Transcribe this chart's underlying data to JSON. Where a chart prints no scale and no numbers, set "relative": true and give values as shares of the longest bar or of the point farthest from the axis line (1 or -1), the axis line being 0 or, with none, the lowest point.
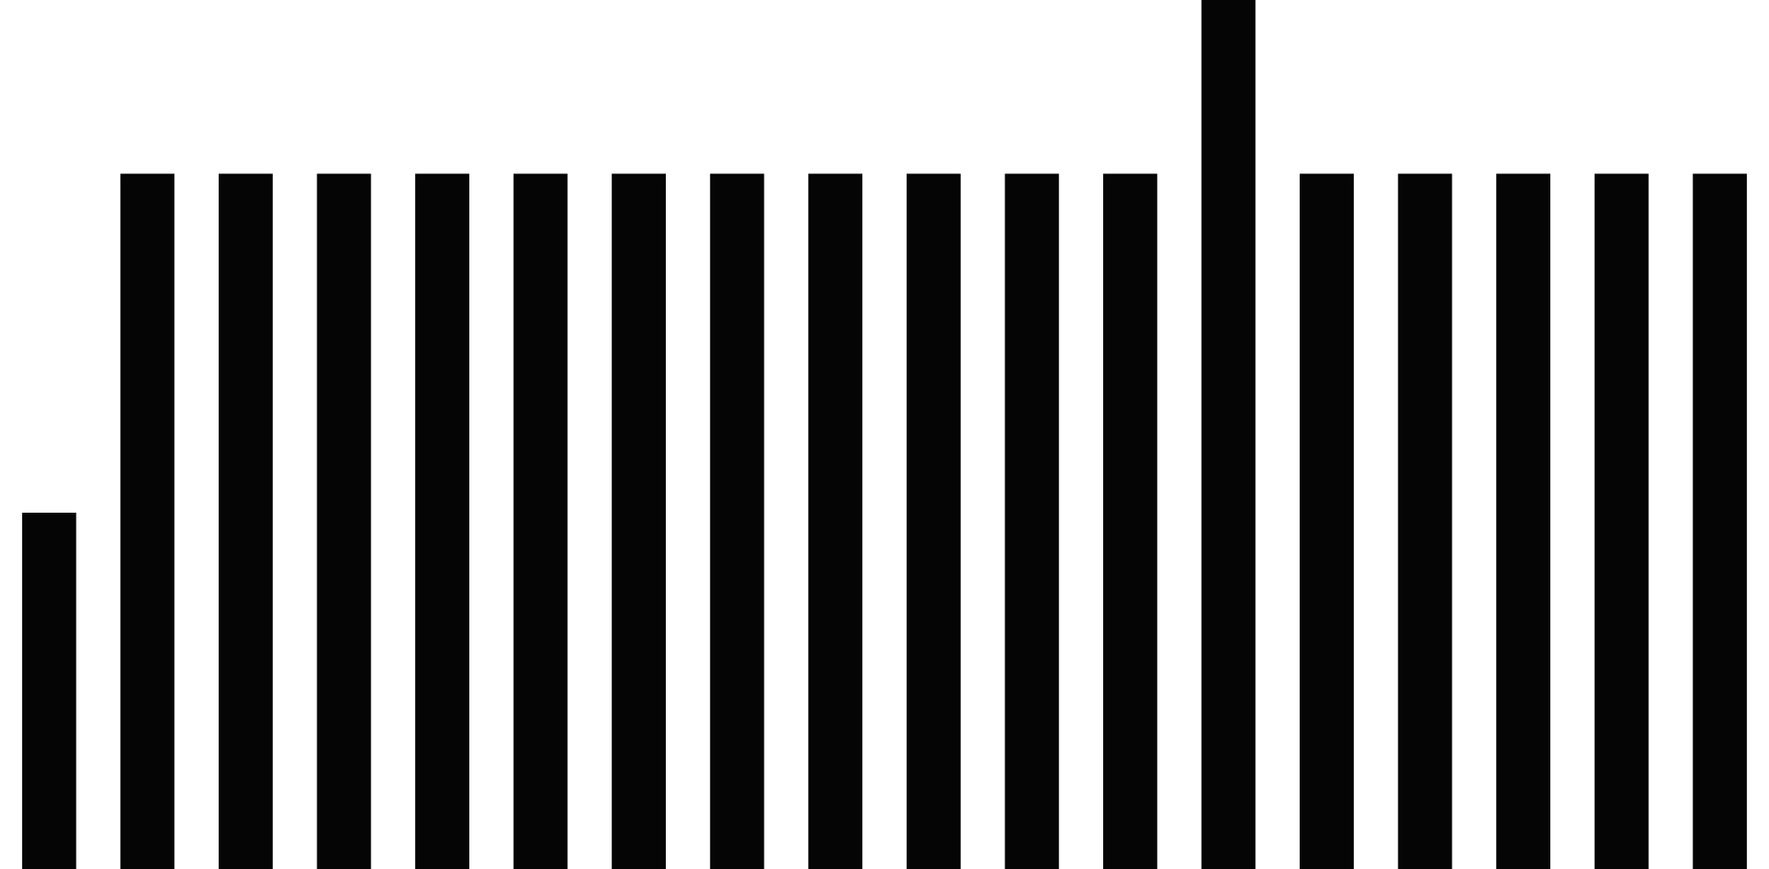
{
  "chart_data": {
    "type": "bar",
    "relative": true,
    "categories": [
      null,
      null,
      null,
      null,
      null,
      null,
      null,
      null,
      null,
      null,
      null,
      null,
      null,
      null,
      null,
      null,
      null,
      null
    ],
    "values": [
      0.41,
      0.8,
      0.8,
      0.8,
      0.8,
      0.8,
      0.8,
      0.8,
      0.8,
      0.8,
      0.8,
      0.8,
      1,
      0.8,
      0.8,
      0.8,
      0.8,
      0.8
    ],
    "color": "#050505",
    "legend": false
  }
}
